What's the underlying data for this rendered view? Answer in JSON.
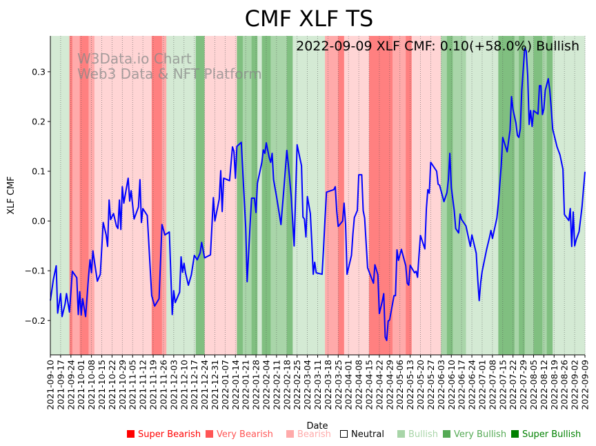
{
  "chart_data": {
    "type": "line",
    "title": "CMF XLF TS",
    "annotation": "2022-09-09 XLF CMF: 0.10(+58.0%) Bullish",
    "watermark": [
      "W3Data.io Chart",
      "Web3 Data & NFT Platform"
    ],
    "xlabel": "Date",
    "ylabel": "XLF CMF",
    "ylim": [
      -0.269,
      0.372
    ],
    "xlim_days": [
      0,
      364
    ],
    "start_date": "2021-09-10",
    "yticks": [
      -0.2,
      -0.1,
      0.0,
      0.1,
      0.2,
      0.3
    ],
    "ytick_labels": [
      "−0.2",
      "−0.1",
      "0.0",
      "0.1",
      "0.2",
      "0.3"
    ],
    "xtick_labels": [
      "2021-09-10",
      "2021-09-17",
      "2021-09-24",
      "2021-10-01",
      "2021-10-08",
      "2021-10-15",
      "2021-10-22",
      "2021-10-29",
      "2021-11-05",
      "2021-11-12",
      "2021-11-19",
      "2021-11-26",
      "2021-12-03",
      "2021-12-10",
      "2021-12-17",
      "2021-12-24",
      "2021-12-31",
      "2022-01-07",
      "2022-01-14",
      "2022-01-21",
      "2022-01-28",
      "2022-02-04",
      "2022-02-11",
      "2022-02-18",
      "2022-02-25",
      "2022-03-04",
      "2022-03-11",
      "2022-03-18",
      "2022-03-25",
      "2022-04-01",
      "2022-04-08",
      "2022-04-15",
      "2022-04-22",
      "2022-04-29",
      "2022-05-06",
      "2022-05-13",
      "2022-05-20",
      "2022-05-27",
      "2022-06-03",
      "2022-06-10",
      "2022-06-17",
      "2022-06-24",
      "2022-07-01",
      "2022-07-08",
      "2022-07-15",
      "2022-07-22",
      "2022-07-29",
      "2022-08-05",
      "2022-08-12",
      "2022-08-19",
      "2022-08-26",
      "2022-09-02",
      "2022-09-09"
    ],
    "grid": "vertical-dotted",
    "line_color": "#0000ff",
    "series": [
      {
        "name": "XLF CMF",
        "points": [
          [
            0,
            -0.16
          ],
          [
            2,
            -0.118
          ],
          [
            4,
            -0.09
          ],
          [
            5,
            -0.185
          ],
          [
            7,
            -0.146
          ],
          [
            8,
            -0.192
          ],
          [
            10,
            -0.167
          ],
          [
            11,
            -0.146
          ],
          [
            13,
            -0.183
          ],
          [
            15,
            -0.101
          ],
          [
            18,
            -0.114
          ],
          [
            19,
            -0.188
          ],
          [
            20,
            -0.142
          ],
          [
            21,
            -0.189
          ],
          [
            22,
            -0.156
          ],
          [
            24,
            -0.192
          ],
          [
            26,
            -0.111
          ],
          [
            27,
            -0.078
          ],
          [
            28,
            -0.104
          ],
          [
            29,
            -0.06
          ],
          [
            32,
            -0.121
          ],
          [
            34,
            -0.107
          ],
          [
            36,
            -0.003
          ],
          [
            38,
            -0.028
          ],
          [
            39,
            -0.051
          ],
          [
            40,
            0.042
          ],
          [
            41,
            0.003
          ],
          [
            43,
            0.015
          ],
          [
            45,
            -0.01
          ],
          [
            46,
            -0.015
          ],
          [
            47,
            0.042
          ],
          [
            48,
            -0.017
          ],
          [
            49,
            0.069
          ],
          [
            50,
            0.036
          ],
          [
            53,
            0.086
          ],
          [
            54,
            0.04
          ],
          [
            55,
            0.061
          ],
          [
            57,
            0.004
          ],
          [
            60,
            0.028
          ],
          [
            61,
            0.083
          ],
          [
            62,
            -0.003
          ],
          [
            63,
            0.025
          ],
          [
            66,
            0.011
          ],
          [
            69,
            -0.15
          ],
          [
            71,
            -0.171
          ],
          [
            74,
            -0.156
          ],
          [
            76,
            -0.007
          ],
          [
            78,
            -0.028
          ],
          [
            81,
            -0.022
          ],
          [
            83,
            -0.188
          ],
          [
            84,
            -0.14
          ],
          [
            85,
            -0.164
          ],
          [
            88,
            -0.143
          ],
          [
            89,
            -0.072
          ],
          [
            90,
            -0.103
          ],
          [
            91,
            -0.085
          ],
          [
            92,
            -0.104
          ],
          [
            94,
            -0.129
          ],
          [
            96,
            -0.108
          ],
          [
            98,
            -0.069
          ],
          [
            100,
            -0.078
          ],
          [
            102,
            -0.064
          ],
          [
            103,
            -0.043
          ],
          [
            105,
            -0.074
          ],
          [
            109,
            -0.068
          ],
          [
            111,
            0.047
          ],
          [
            112,
            0.0
          ],
          [
            115,
            0.044
          ],
          [
            116,
            0.101
          ],
          [
            117,
            0.019
          ],
          [
            118,
            0.086
          ],
          [
            122,
            0.081
          ],
          [
            124,
            0.149
          ],
          [
            125,
            0.14
          ],
          [
            126,
            0.086
          ],
          [
            127,
            0.15
          ],
          [
            130,
            0.158
          ],
          [
            133,
            -0.014
          ],
          [
            134,
            -0.122
          ],
          [
            136,
            -0.006
          ],
          [
            137,
            0.046
          ],
          [
            139,
            0.046
          ],
          [
            140,
            0.017
          ],
          [
            141,
            0.076
          ],
          [
            144,
            0.118
          ],
          [
            145,
            0.143
          ],
          [
            146,
            0.136
          ],
          [
            147,
            0.157
          ],
          [
            149,
            0.128
          ],
          [
            150,
            0.118
          ],
          [
            151,
            0.136
          ],
          [
            152,
            0.083
          ],
          [
            154,
            0.049
          ],
          [
            157,
            -0.007
          ],
          [
            159,
            0.064
          ],
          [
            161,
            0.142
          ],
          [
            162,
            0.115
          ],
          [
            164,
            0.049
          ],
          [
            166,
            -0.05
          ],
          [
            168,
            0.153
          ],
          [
            171,
            0.111
          ],
          [
            172,
            0.008
          ],
          [
            173,
            0.004
          ],
          [
            174,
            -0.032
          ],
          [
            175,
            0.049
          ],
          [
            177,
            0.015
          ],
          [
            178,
            -0.042
          ],
          [
            179,
            -0.107
          ],
          [
            180,
            -0.083
          ],
          [
            181,
            -0.104
          ],
          [
            185,
            -0.107
          ],
          [
            186,
            -0.056
          ],
          [
            187,
            0.003
          ],
          [
            188,
            0.058
          ],
          [
            193,
            0.063
          ],
          [
            194,
            0.069
          ],
          [
            195,
            0.019
          ],
          [
            196,
            -0.011
          ],
          [
            199,
            0.0
          ],
          [
            200,
            0.036
          ],
          [
            201,
            -0.007
          ],
          [
            202,
            -0.107
          ],
          [
            205,
            -0.069
          ],
          [
            206,
            -0.026
          ],
          [
            207,
            0.007
          ],
          [
            209,
            0.021
          ],
          [
            210,
            0.093
          ],
          [
            212,
            0.093
          ],
          [
            213,
            0.021
          ],
          [
            214,
            0.006
          ],
          [
            216,
            -0.094
          ],
          [
            220,
            -0.125
          ],
          [
            221,
            -0.088
          ],
          [
            223,
            -0.108
          ],
          [
            224,
            -0.186
          ],
          [
            226,
            -0.161
          ],
          [
            227,
            -0.146
          ],
          [
            228,
            -0.233
          ],
          [
            229,
            -0.24
          ],
          [
            230,
            -0.201
          ],
          [
            231,
            -0.199
          ],
          [
            234,
            -0.15
          ],
          [
            235,
            -0.15
          ],
          [
            236,
            -0.058
          ],
          [
            237,
            -0.079
          ],
          [
            239,
            -0.057
          ],
          [
            242,
            -0.09
          ],
          [
            243,
            -0.125
          ],
          [
            244,
            -0.129
          ],
          [
            245,
            -0.089
          ],
          [
            248,
            -0.104
          ],
          [
            249,
            -0.101
          ],
          [
            250,
            -0.113
          ],
          [
            251,
            -0.069
          ],
          [
            252,
            -0.029
          ],
          [
            255,
            -0.056
          ],
          [
            256,
            0.025
          ],
          [
            257,
            0.063
          ],
          [
            258,
            0.056
          ],
          [
            259,
            0.118
          ],
          [
            263,
            0.1
          ],
          [
            264,
            0.074
          ],
          [
            265,
            0.072
          ],
          [
            268,
            0.039
          ],
          [
            270,
            0.057
          ],
          [
            271,
            0.083
          ],
          [
            272,
            0.136
          ],
          [
            273,
            0.067
          ],
          [
            275,
            0.021
          ],
          [
            276,
            -0.015
          ],
          [
            278,
            -0.024
          ],
          [
            279,
            0.014
          ],
          [
            280,
            0.003
          ],
          [
            283,
            -0.01
          ],
          [
            285,
            -0.038
          ],
          [
            286,
            -0.051
          ],
          [
            287,
            -0.028
          ],
          [
            290,
            -0.065
          ],
          [
            291,
            -0.118
          ],
          [
            292,
            -0.16
          ],
          [
            293,
            -0.124
          ],
          [
            294,
            -0.101
          ],
          [
            297,
            -0.058
          ],
          [
            299,
            -0.033
          ],
          [
            300,
            -0.019
          ],
          [
            301,
            -0.035
          ],
          [
            304,
            0.006
          ],
          [
            305,
            0.035
          ],
          [
            307,
            0.111
          ],
          [
            308,
            0.168
          ],
          [
            311,
            0.139
          ],
          [
            313,
            0.183
          ],
          [
            314,
            0.25
          ],
          [
            315,
            0.224
          ],
          [
            317,
            0.197
          ],
          [
            318,
            0.172
          ],
          [
            319,
            0.168
          ],
          [
            320,
            0.186
          ],
          [
            321,
            0.263
          ],
          [
            323,
            0.347
          ],
          [
            324,
            0.342
          ],
          [
            325,
            0.292
          ],
          [
            326,
            0.194
          ],
          [
            327,
            0.222
          ],
          [
            328,
            0.19
          ],
          [
            329,
            0.222
          ],
          [
            332,
            0.215
          ],
          [
            333,
            0.272
          ],
          [
            334,
            0.272
          ],
          [
            335,
            0.214
          ],
          [
            336,
            0.225
          ],
          [
            337,
            0.263
          ],
          [
            339,
            0.286
          ],
          [
            340,
            0.264
          ],
          [
            341,
            0.229
          ],
          [
            342,
            0.185
          ],
          [
            345,
            0.149
          ],
          [
            347,
            0.133
          ],
          [
            349,
            0.104
          ],
          [
            350,
            0.013
          ],
          [
            353,
            0.001
          ],
          [
            354,
            0.025
          ],
          [
            355,
            -0.051
          ],
          [
            356,
            0.018
          ],
          [
            357,
            -0.05
          ],
          [
            358,
            -0.038
          ],
          [
            360,
            -0.021
          ],
          [
            362,
            0.028
          ],
          [
            363,
            0.065
          ],
          [
            364,
            0.099
          ]
        ]
      }
    ],
    "bands": [
      [
        0,
        13,
        "bullish"
      ],
      [
        13,
        15,
        "super_bearish"
      ],
      [
        15,
        20,
        "very_bearish"
      ],
      [
        20,
        26,
        "super_bearish"
      ],
      [
        26,
        30,
        "very_bearish"
      ],
      [
        30,
        69,
        "bearish"
      ],
      [
        69,
        76,
        "super_bearish"
      ],
      [
        76,
        79,
        "very_bearish"
      ],
      [
        79,
        99,
        "bullish"
      ],
      [
        99,
        105,
        "super_bullish"
      ],
      [
        105,
        127,
        "bearish"
      ],
      [
        127,
        131,
        "super_bullish"
      ],
      [
        131,
        137,
        "very_bullish"
      ],
      [
        137,
        141,
        "super_bullish"
      ],
      [
        141,
        144,
        "bullish"
      ],
      [
        144,
        150,
        "super_bullish"
      ],
      [
        150,
        161,
        "very_bullish"
      ],
      [
        161,
        165,
        "super_bullish"
      ],
      [
        165,
        187,
        "bullish"
      ],
      [
        187,
        196,
        "very_bearish"
      ],
      [
        196,
        200,
        "super_bearish"
      ],
      [
        200,
        217,
        "bearish"
      ],
      [
        217,
        233,
        "super_bearish"
      ],
      [
        233,
        242,
        "very_bearish"
      ],
      [
        242,
        246,
        "super_bearish"
      ],
      [
        246,
        266,
        "bearish"
      ],
      [
        266,
        270,
        "very_bullish"
      ],
      [
        270,
        274,
        "super_bullish"
      ],
      [
        274,
        283,
        "very_bullish"
      ],
      [
        283,
        305,
        "bullish"
      ],
      [
        305,
        316,
        "super_bullish"
      ],
      [
        316,
        319,
        "very_bullish"
      ],
      [
        319,
        323,
        "super_bullish"
      ],
      [
        323,
        329,
        "very_bullish"
      ],
      [
        329,
        335,
        "super_bullish"
      ],
      [
        335,
        338,
        "very_bullish"
      ],
      [
        338,
        342,
        "super_bullish"
      ],
      [
        342,
        364,
        "bullish"
      ]
    ],
    "band_colors": {
      "super_bearish": "#ff8080",
      "very_bearish": "#ffaaaa",
      "bearish": "#ffd5d5",
      "bullish": "#d4ead4",
      "very_bullish": "#a9d5a9",
      "super_bullish": "#80bf80"
    },
    "legend": [
      {
        "label": "Super Bearish",
        "color": "#ff0000",
        "key": "super_bearish"
      },
      {
        "label": "Very Bearish",
        "color": "#ff5555",
        "key": "very_bearish"
      },
      {
        "label": "Bearish",
        "color": "#ffaaaa",
        "key": "bearish"
      },
      {
        "label": "Neutral",
        "color": "#000000",
        "key": "neutral"
      },
      {
        "label": "Bullish",
        "color": "#a8d5a8",
        "key": "bullish"
      },
      {
        "label": "Very Bullish",
        "color": "#55aa55",
        "key": "very_bullish"
      },
      {
        "label": "Super Bullish",
        "color": "#008000",
        "key": "super_bullish"
      }
    ],
    "legend_placement": "bottom"
  }
}
